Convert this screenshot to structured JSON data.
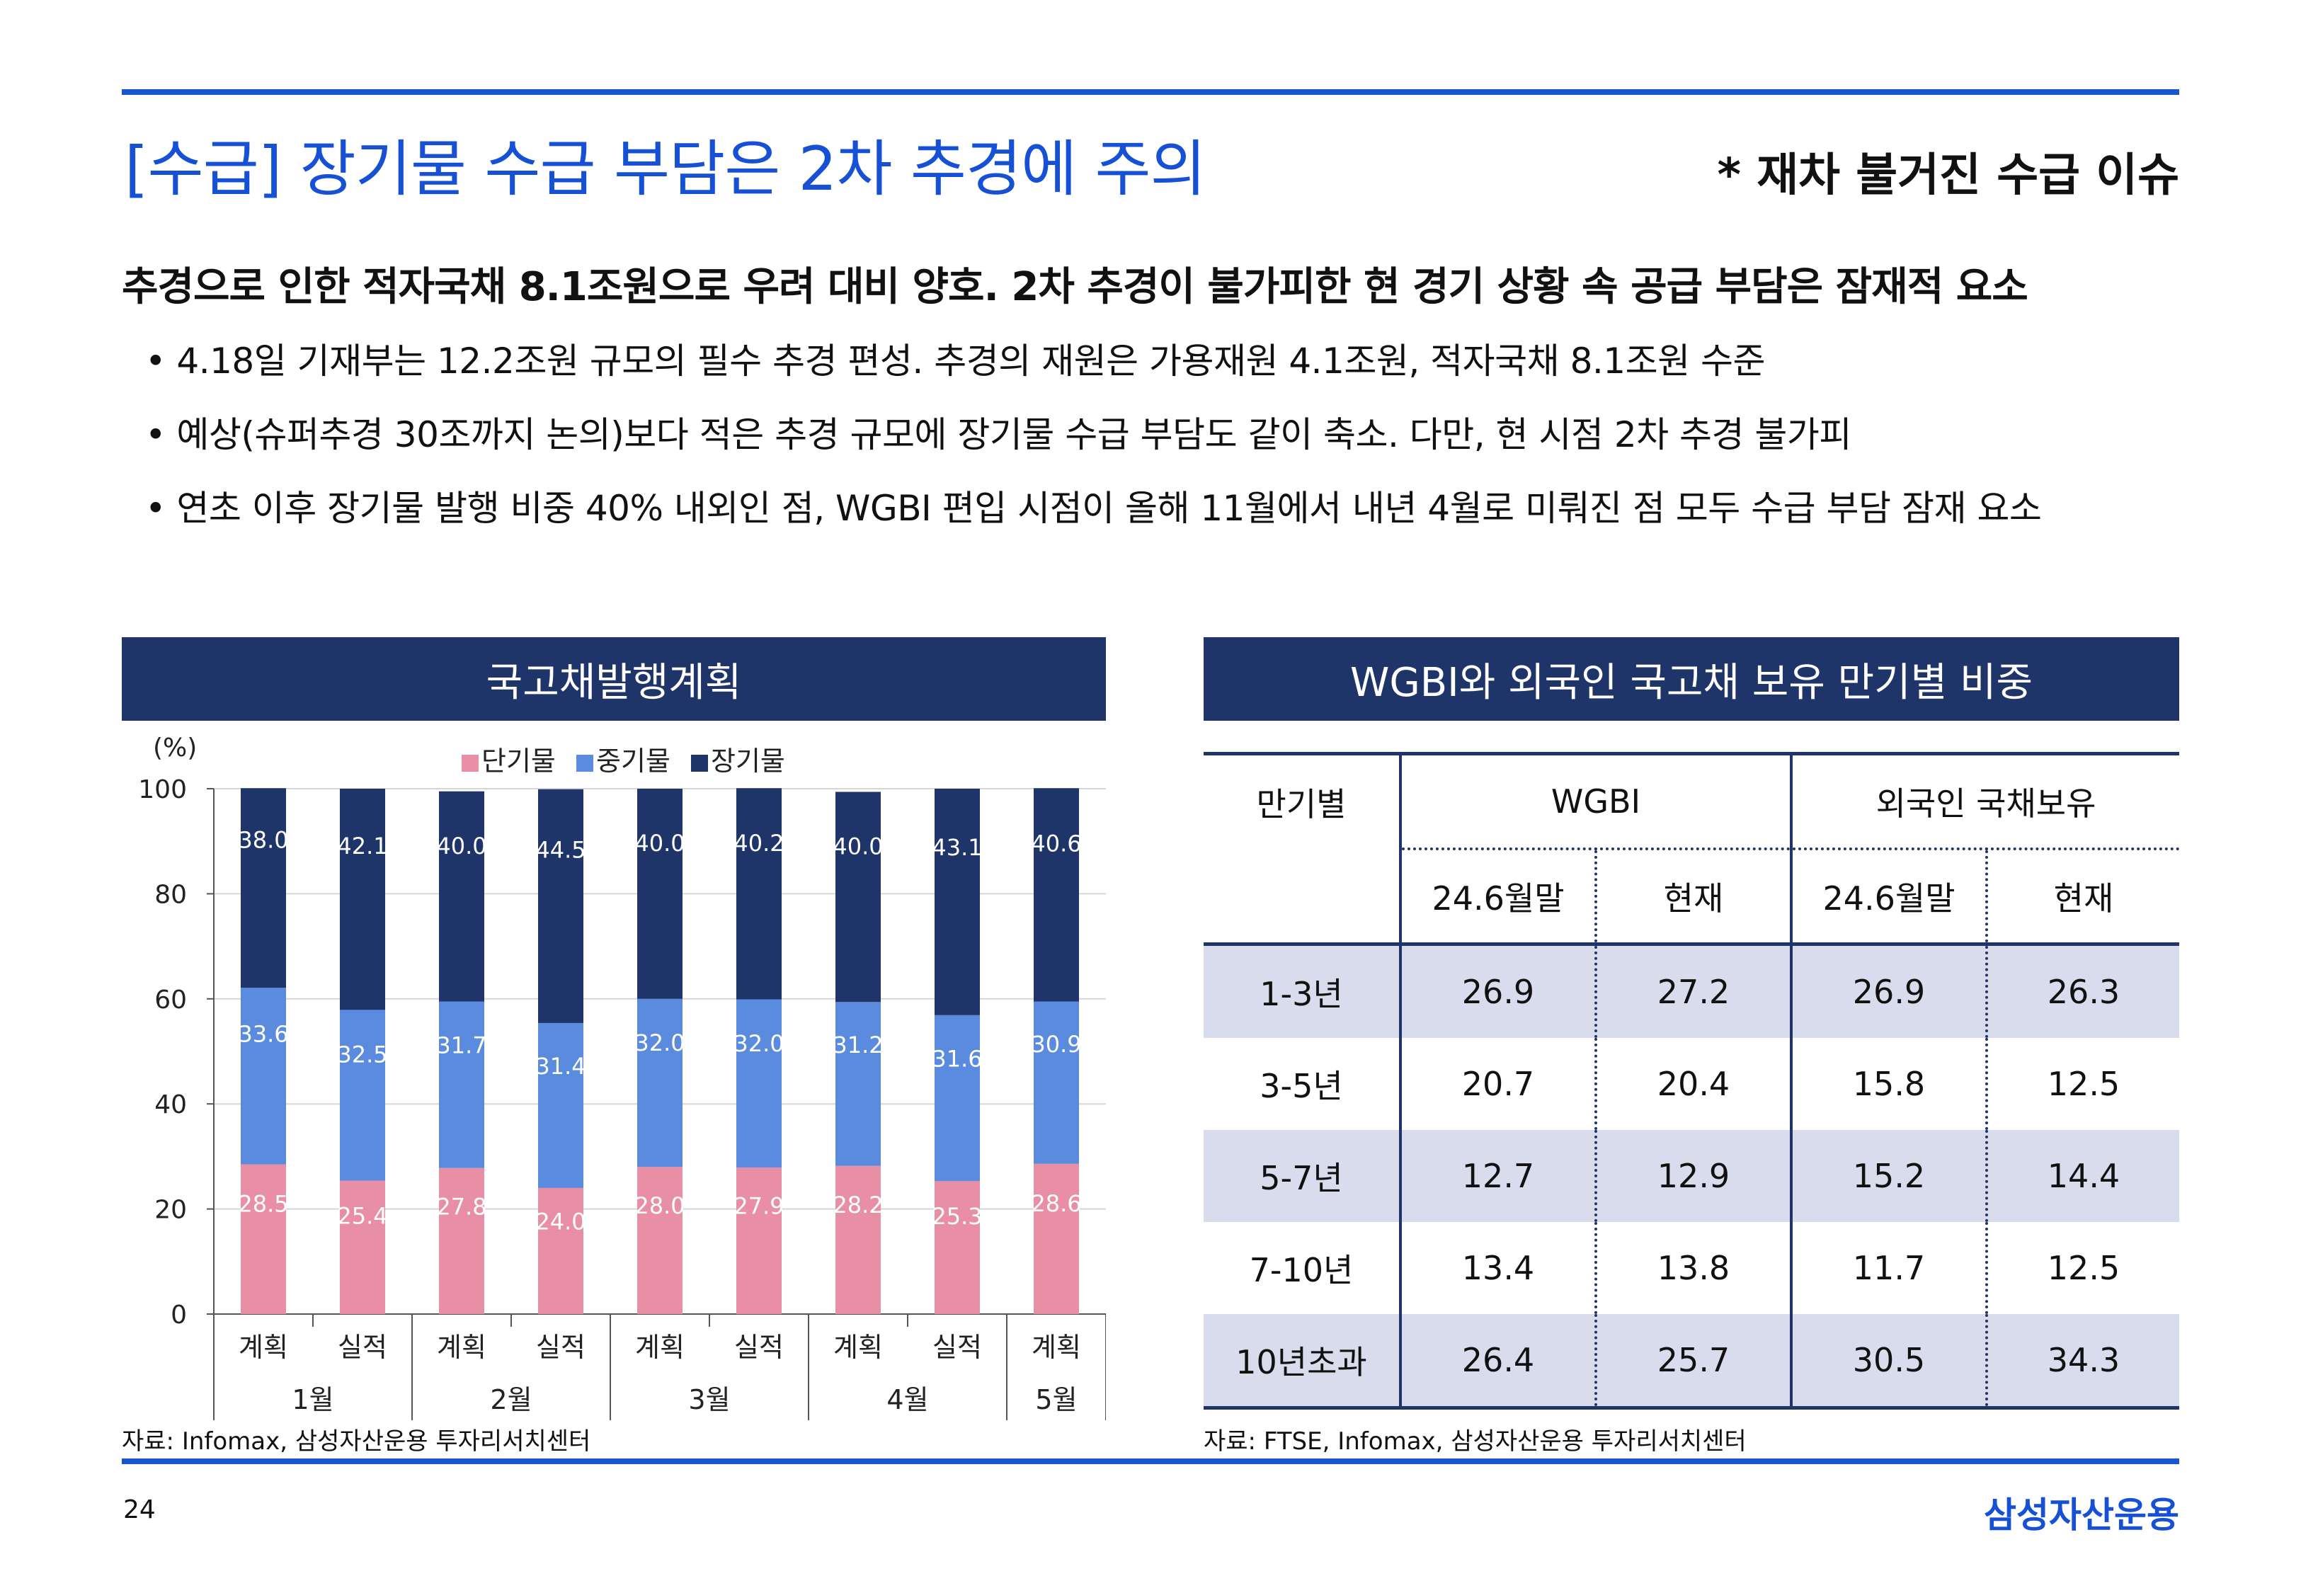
{
  "title": "[수급] 장기물 수급 부담은 2차 추경에 주의",
  "tag": "* 재차 불거진 수급 이슈",
  "subhead": "추경으로 인한 적자국채 8.1조원으로 우려 대비 양호. 2차 추경이 불가피한 현 경기 상황 속 공급 부담은 잠재적 요소",
  "bullets": [
    "• 4.18일 기재부는 12.2조원 규모의 필수 추경 편성. 추경의 재원은 가용재원 4.1조원, 적자국채 8.1조원 수준",
    "• 예상(슈퍼추경 30조까지 논의)보다 적은 추경 규모에 장기물 수급 부담도 같이 축소. 다만, 현 시점 2차 추경 불가피",
    "• 연초 이후 장기물 발행 비중 40% 내외인 점, WGBI 편입 시점이 올해 11월에서 내년 4월로 미뤄진 점 모두 수급 부담 잠재 요소"
  ],
  "left_panel": {
    "title": "국고채발행계획",
    "source": "자료: Infomax, 삼성자산운용 투자리서치센터"
  },
  "right_panel": {
    "title": "WGBI와 외국인 국고채 보유 만기별 비중",
    "source": "자료: FTSE, Infomax, 삼성자산운용 투자리서치센터",
    "header": {
      "col0": "만기별",
      "group1": "WGBI",
      "group2": "외국인 국채보유",
      "sub": [
        "24.6월말",
        "현재",
        "24.6월말",
        "현재"
      ]
    },
    "rows": [
      {
        "label": "1-3년",
        "values": [
          "26.9",
          "27.2",
          "26.9",
          "26.3"
        ]
      },
      {
        "label": "3-5년",
        "values": [
          "20.7",
          "20.4",
          "15.8",
          "12.5"
        ]
      },
      {
        "label": "5-7년",
        "values": [
          "12.7",
          "12.9",
          "15.2",
          "14.4"
        ]
      },
      {
        "label": "7-10년",
        "values": [
          "13.4",
          "13.8",
          "11.7",
          "12.5"
        ]
      },
      {
        "label": "10년초과",
        "values": [
          "26.4",
          "25.7",
          "30.5",
          "34.3"
        ]
      }
    ]
  },
  "chart_data": {
    "type": "bar",
    "stacked": true,
    "ylabel": "(%)",
    "ylim": [
      0,
      100
    ],
    "yticks": [
      0,
      20,
      40,
      60,
      80,
      100
    ],
    "legend_position": "top",
    "categories": [
      "계획",
      "실적",
      "계획",
      "실적",
      "계획",
      "실적",
      "계획",
      "실적",
      "계획"
    ],
    "month_groups": [
      {
        "label": "1월",
        "span": 2
      },
      {
        "label": "2월",
        "span": 2
      },
      {
        "label": "3월",
        "span": 2
      },
      {
        "label": "4월",
        "span": 2
      },
      {
        "label": "5월",
        "span": 1
      }
    ],
    "series": [
      {
        "name": "단기물",
        "color": "#e88fa5",
        "values": [
          28.5,
          25.4,
          27.8,
          24.0,
          28.0,
          27.9,
          28.2,
          25.3,
          28.6
        ],
        "labels": [
          "28.5",
          "25.4",
          "27.8",
          "24.0",
          "28.0",
          "27.9",
          "28.2",
          "25.3",
          "28.6"
        ]
      },
      {
        "name": "중기물",
        "color": "#5b8bdf",
        "values": [
          33.6,
          32.5,
          31.7,
          31.4,
          32.0,
          32.0,
          31.2,
          31.6,
          30.9
        ],
        "labels": [
          "33.6",
          "32.5",
          "31.7",
          "31.4",
          "32.0",
          "32.0",
          "31.2",
          "31.6",
          "30.9"
        ]
      },
      {
        "name": "장기물",
        "color": "#1f3468",
        "values": [
          38.0,
          42.1,
          40.0,
          44.5,
          40.0,
          40.2,
          40.0,
          43.1,
          40.6
        ],
        "labels": [
          "38.0",
          "42.1",
          "40.0",
          "44.5",
          "40.0",
          "40.2",
          "40.0",
          "43.1",
          "40.6"
        ]
      }
    ]
  },
  "footer": {
    "page": "24",
    "brand": "삼성자산운용"
  }
}
